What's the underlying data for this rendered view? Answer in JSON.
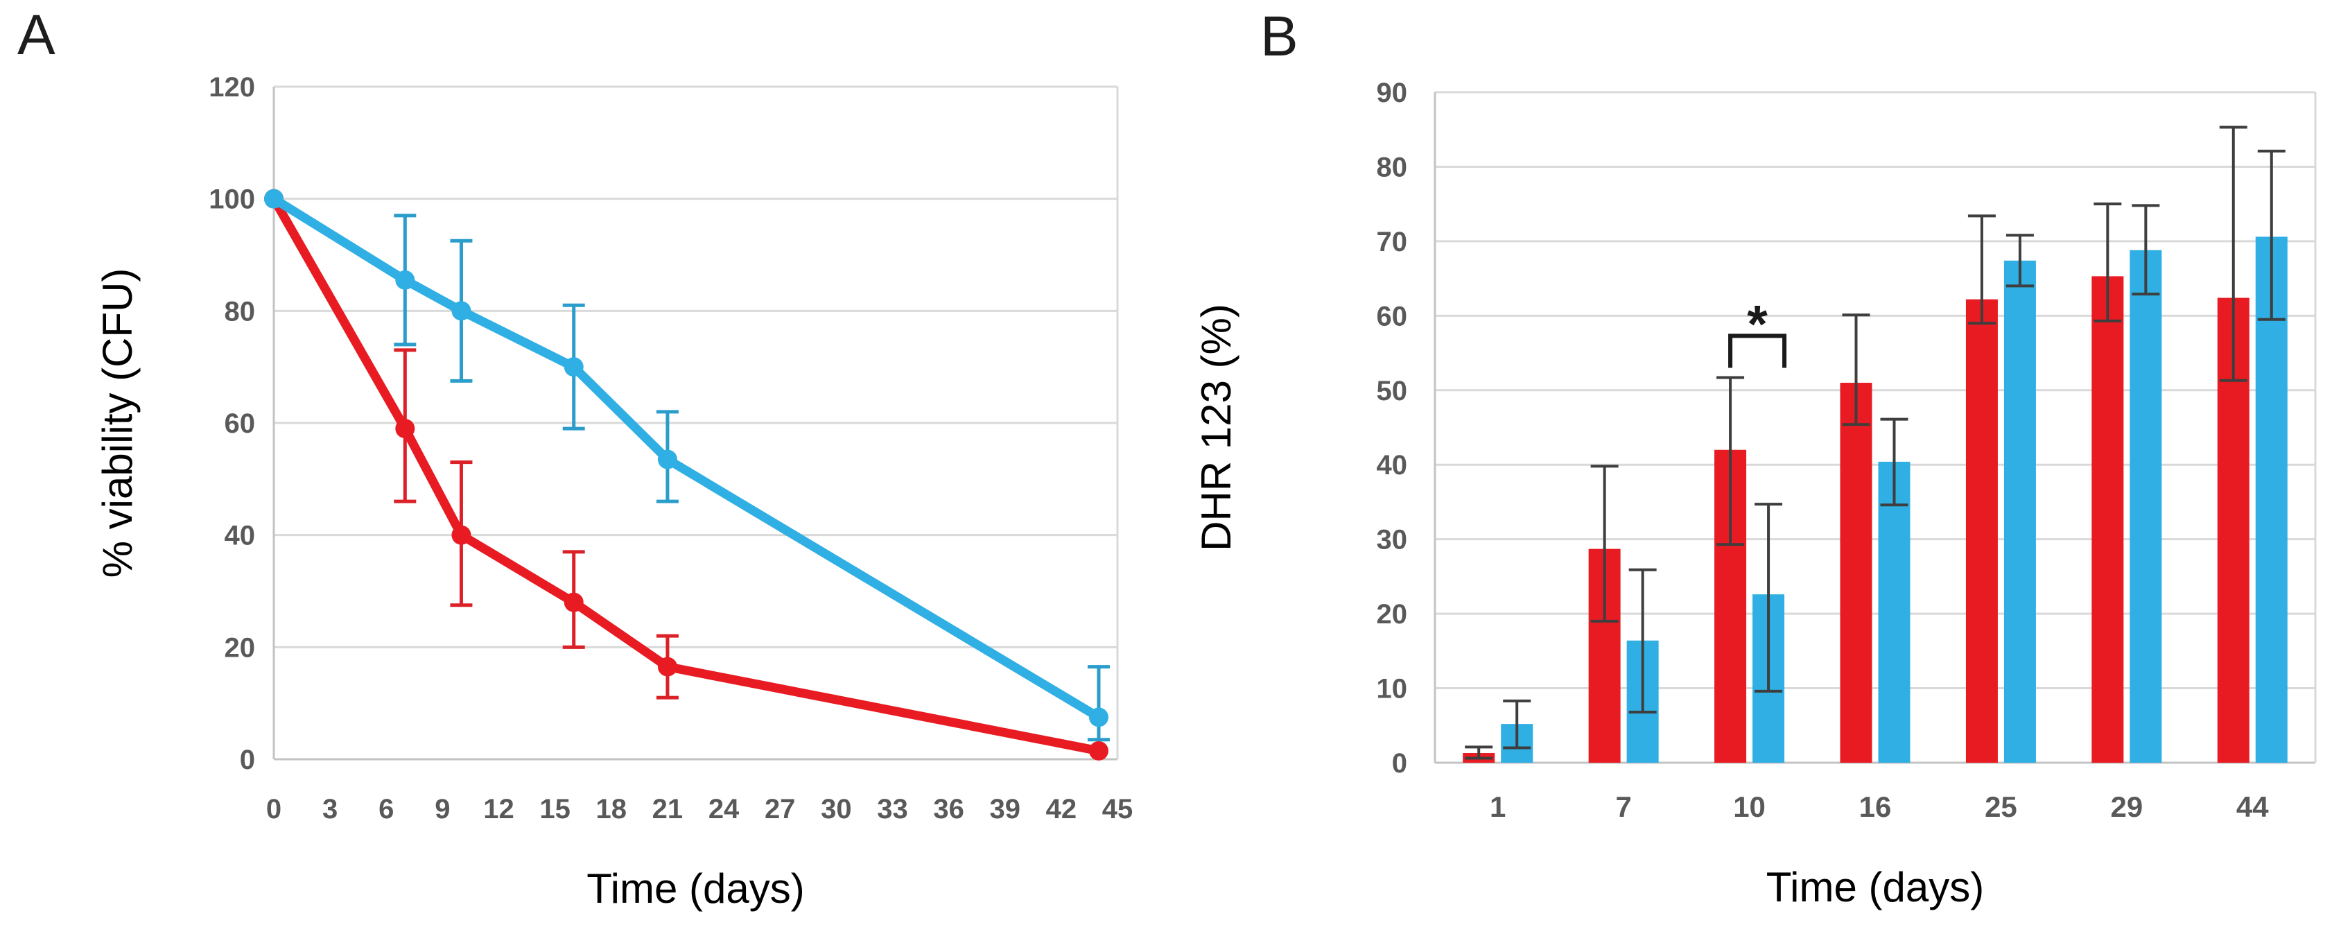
{
  "figure": {
    "background": "#ffffff",
    "panels": [
      {
        "letter": "A"
      },
      {
        "letter": "B"
      }
    ]
  },
  "colors": {
    "red": "#E81B22",
    "blue": "#2FAFE3",
    "red_error": "#DC2027",
    "blue_error": "#2A9DCB",
    "bar_error": "#3E3E3E",
    "tick_label": "#595959",
    "axis_title": "#000000",
    "gridline": "#D9D9D9",
    "axis_line": "#C3C3C3",
    "annotation": "#1A1A1A"
  },
  "chart_data": [
    {
      "type": "line",
      "panel": "A",
      "title": "",
      "xlabel": "Time (days)",
      "ylabel": "% viability (CFU)",
      "xlim": [
        0,
        45
      ],
      "ylim": [
        0,
        120
      ],
      "xticks": [
        0,
        3,
        6,
        9,
        12,
        15,
        18,
        21,
        24,
        27,
        30,
        33,
        36,
        39,
        42,
        45
      ],
      "yticks": [
        0,
        20,
        40,
        60,
        80,
        100,
        120
      ],
      "grid": "horizontal",
      "legend": "none",
      "x_days": [
        0,
        7,
        10,
        16,
        21,
        44
      ],
      "series": [
        {
          "name": "red",
          "color_key": "red",
          "error_color_key": "red_error",
          "y": [
            100,
            59,
            40,
            28,
            16.5,
            1.5
          ],
          "err_low": [
            null,
            46,
            27.5,
            20,
            11,
            null
          ],
          "err_high": [
            null,
            73,
            53,
            37,
            22,
            null
          ]
        },
        {
          "name": "blue",
          "color_key": "blue",
          "error_color_key": "blue_error",
          "y": [
            100,
            85.5,
            80,
            70,
            53.5,
            7.5
          ],
          "err_low": [
            null,
            74,
            67.5,
            59,
            46,
            3.5
          ],
          "err_high": [
            null,
            97,
            92.5,
            81,
            62,
            16.5
          ]
        }
      ]
    },
    {
      "type": "bar",
      "panel": "B",
      "title": "",
      "xlabel": "Time (days)",
      "ylabel": "DHR 123 (%)",
      "ylim": [
        0,
        90
      ],
      "yticks": [
        0,
        10,
        20,
        30,
        40,
        50,
        60,
        70,
        80,
        90
      ],
      "grid": "horizontal",
      "legend": "none",
      "categories": [
        "1",
        "7",
        "10",
        "16",
        "25",
        "29",
        "44"
      ],
      "series": [
        {
          "name": "red",
          "color_key": "red",
          "values": [
            1.3,
            28.7,
            42,
            51,
            62.2,
            65.3,
            62.4
          ],
          "err_low": [
            0.6,
            19,
            29.3,
            45.4,
            59,
            59.3,
            51.3
          ],
          "err_high": [
            2.1,
            39.8,
            51.7,
            60.1,
            73.4,
            75,
            85.3
          ]
        },
        {
          "name": "blue",
          "color_key": "blue",
          "values": [
            5.2,
            16.4,
            22.6,
            40.4,
            67.4,
            68.8,
            70.6
          ],
          "err_low": [
            2.0,
            6.8,
            9.6,
            34.6,
            64,
            62.9,
            59.5
          ],
          "err_high": [
            8.3,
            25.9,
            34.7,
            46.1,
            70.8,
            74.8,
            82.1
          ]
        }
      ],
      "significance": {
        "label": "*",
        "category_index": 2,
        "bracket_top_value": 57.3,
        "drop_to_value": 53,
        "label_value": 58.5
      }
    }
  ]
}
